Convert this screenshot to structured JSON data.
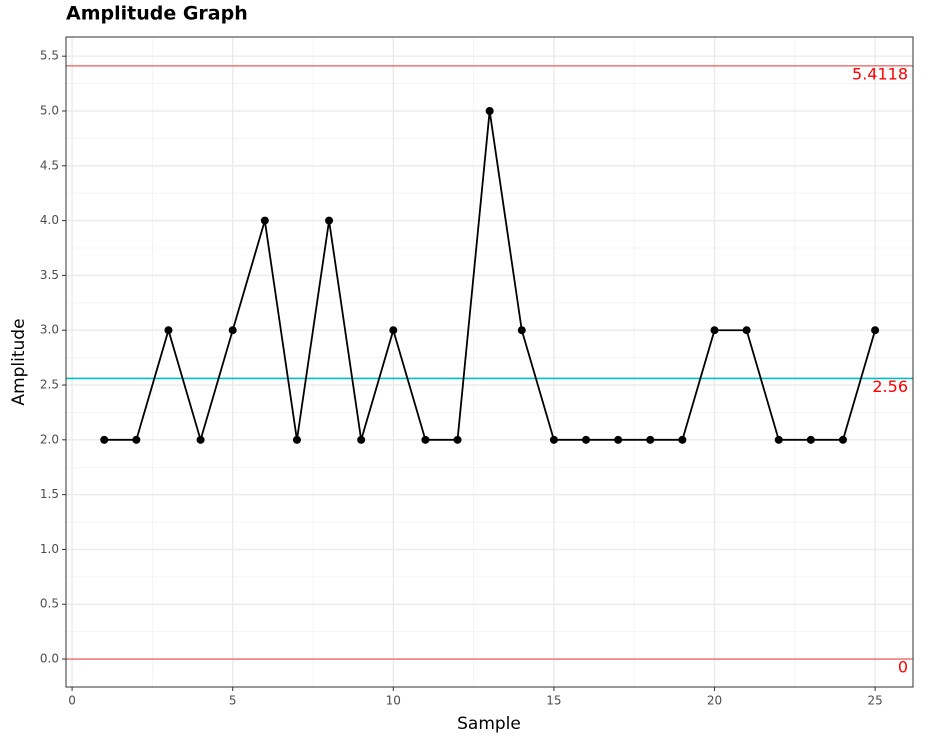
{
  "chart_data": {
    "type": "line",
    "title": "Amplitude Graph",
    "x_label": "Sample",
    "y_label": "Amplitude",
    "x": [
      1,
      2,
      3,
      4,
      5,
      6,
      7,
      8,
      9,
      10,
      11,
      12,
      13,
      14,
      15,
      16,
      17,
      18,
      19,
      20,
      21,
      22,
      23,
      24,
      25
    ],
    "series": [
      {
        "color": "#000000",
        "values": [
          2,
          2,
          3,
          2,
          3,
          4,
          2,
          4,
          2,
          3,
          2,
          2,
          5,
          3,
          2,
          2,
          2,
          2,
          2,
          3,
          3,
          2,
          2,
          2,
          3
        ]
      }
    ],
    "reference_lines": [
      {
        "value": 5.4118,
        "color": "#f08080",
        "label_color": "#ff0000"
      },
      {
        "value": 2.56,
        "color": "#00bfc4",
        "label_color": "#ff0000"
      },
      {
        "value": 0,
        "color": "#f08080",
        "label_color": "#ff0000"
      }
    ],
    "xlim": [
      -0.19,
      26.18
    ],
    "ylim": [
      -0.255,
      5.675
    ],
    "xticks": [
      0,
      5,
      10,
      15,
      20,
      25
    ],
    "x_minor_ticks": [
      2.5,
      7.5,
      12.5,
      17.5,
      22.5
    ],
    "yticks": [
      {
        "value": 0,
        "label": "0.0"
      },
      {
        "value": 0.5,
        "label": "0.5"
      },
      {
        "value": 1,
        "label": "1.0"
      },
      {
        "value": 1.5,
        "label": "1.5"
      },
      {
        "value": 2,
        "label": "2.0"
      },
      {
        "value": 2.5,
        "label": "2.5"
      },
      {
        "value": 3,
        "label": "3.0"
      },
      {
        "value": 3.5,
        "label": "3.5"
      },
      {
        "value": 4,
        "label": "4.0"
      },
      {
        "value": 4.5,
        "label": "4.5"
      },
      {
        "value": 5,
        "label": "5.0"
      },
      {
        "value": 5.5,
        "label": "5.5"
      }
    ],
    "y_minor_ticks": [
      0.25,
      0.75,
      1.25,
      1.75,
      2.25,
      2.75,
      3.25,
      3.75,
      4.25,
      4.75,
      5.25
    ],
    "grid": true
  }
}
